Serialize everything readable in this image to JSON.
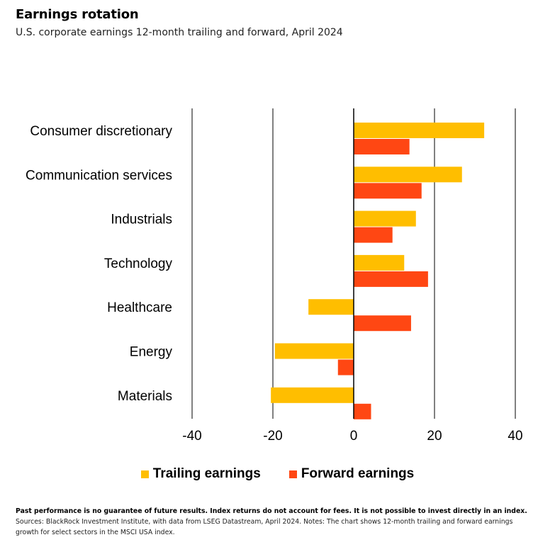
{
  "title": "Earnings rotation",
  "subtitle": "U.S. corporate earnings 12-month trailing and forward, April 2024",
  "footnote": {
    "bold_text": "Past performance is no guarantee of future results. Index returns do not account for fees. It is not possible to invest directly in an index.",
    "text": " Sources: BlackRock Investment Institute, with data from LSEG Datastream, April 2024. Notes: The chart shows 12-month trailing and forward earnings growth for select sectors in the MSCI USA index."
  },
  "colors": {
    "trailing": "#FFBE00",
    "forward": "#FF4713",
    "gridline": "#000000"
  },
  "chart_data": {
    "type": "bar",
    "orientation": "horizontal",
    "title": "Earnings rotation",
    "subtitle": "U.S. corporate earnings 12-month trailing and forward, April 2024",
    "categories": [
      "Consumer discretionary",
      "Communication services",
      "Industrials",
      "Technology",
      "Healthcare",
      "Energy",
      "Materials"
    ],
    "series": [
      {
        "name": "Trailing earnings",
        "color": "#FFBE00",
        "values": [
          32.3,
          26.8,
          15.4,
          12.5,
          -11.2,
          -19.5,
          -20.5
        ]
      },
      {
        "name": "Forward earnings",
        "color": "#FF4713",
        "values": [
          13.8,
          16.8,
          9.6,
          18.4,
          14.2,
          -3.9,
          4.3
        ]
      }
    ],
    "xlim": [
      -40,
      40
    ],
    "xticks": [
      -40,
      -20,
      0,
      20,
      40
    ],
    "xtick_labels": [
      "-40",
      "-20",
      "0",
      "20",
      "40"
    ],
    "grid": true,
    "legend_position": "bottom"
  }
}
